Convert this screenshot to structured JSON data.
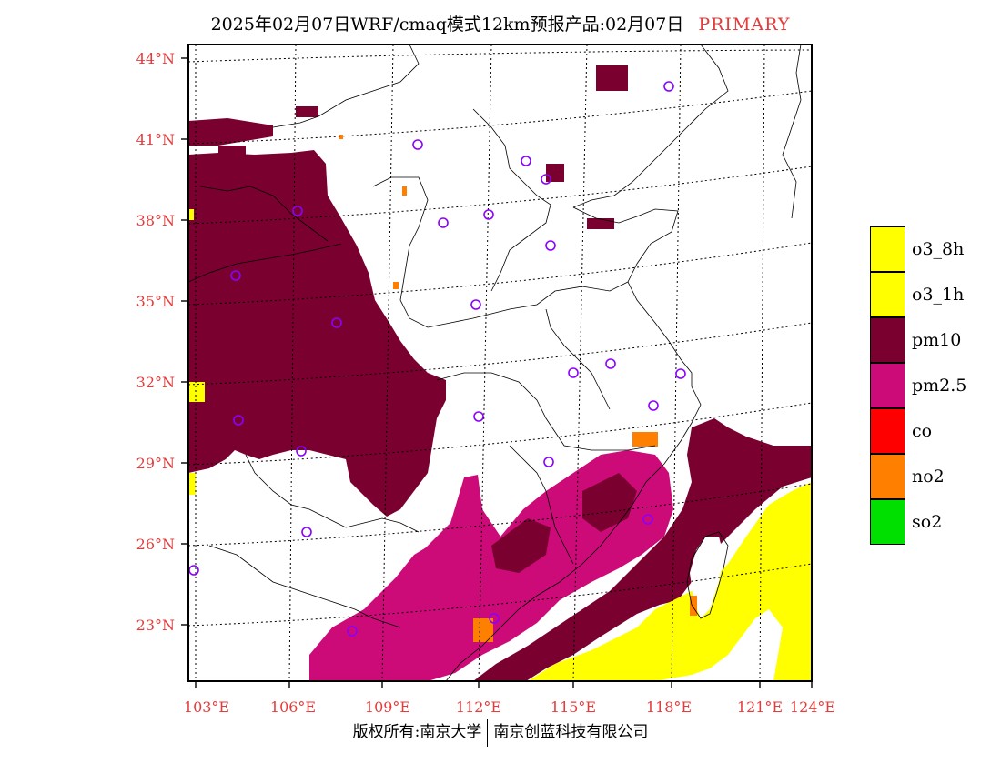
{
  "title": {
    "main": "2025年02月07日WRF/cmaq模式12km预报产品:02月07日",
    "tag": "PRIMARY"
  },
  "lat_ticks": [
    "44°N",
    "41°N",
    "38°N",
    "35°N",
    "32°N",
    "29°N",
    "26°N",
    "23°N"
  ],
  "lon_ticks": [
    "103°E",
    "106°E",
    "109°E",
    "112°E",
    "115°E",
    "118°E",
    "121°E",
    "124°E"
  ],
  "legend": [
    {
      "label": "o3_8h",
      "color": "#ffff00"
    },
    {
      "label": "o3_1h",
      "color": "#ffff00"
    },
    {
      "label": "pm10",
      "color": "#7a0030"
    },
    {
      "label": "pm2.5",
      "color": "#cc0b79"
    },
    {
      "label": "co",
      "color": "#ff0000"
    },
    {
      "label": "no2",
      "color": "#ff7f00"
    },
    {
      "label": "so2",
      "color": "#00e000"
    }
  ],
  "footer": {
    "left": "版权所有:南京大学",
    "right": "南京创蓝科技有限公司"
  }
}
